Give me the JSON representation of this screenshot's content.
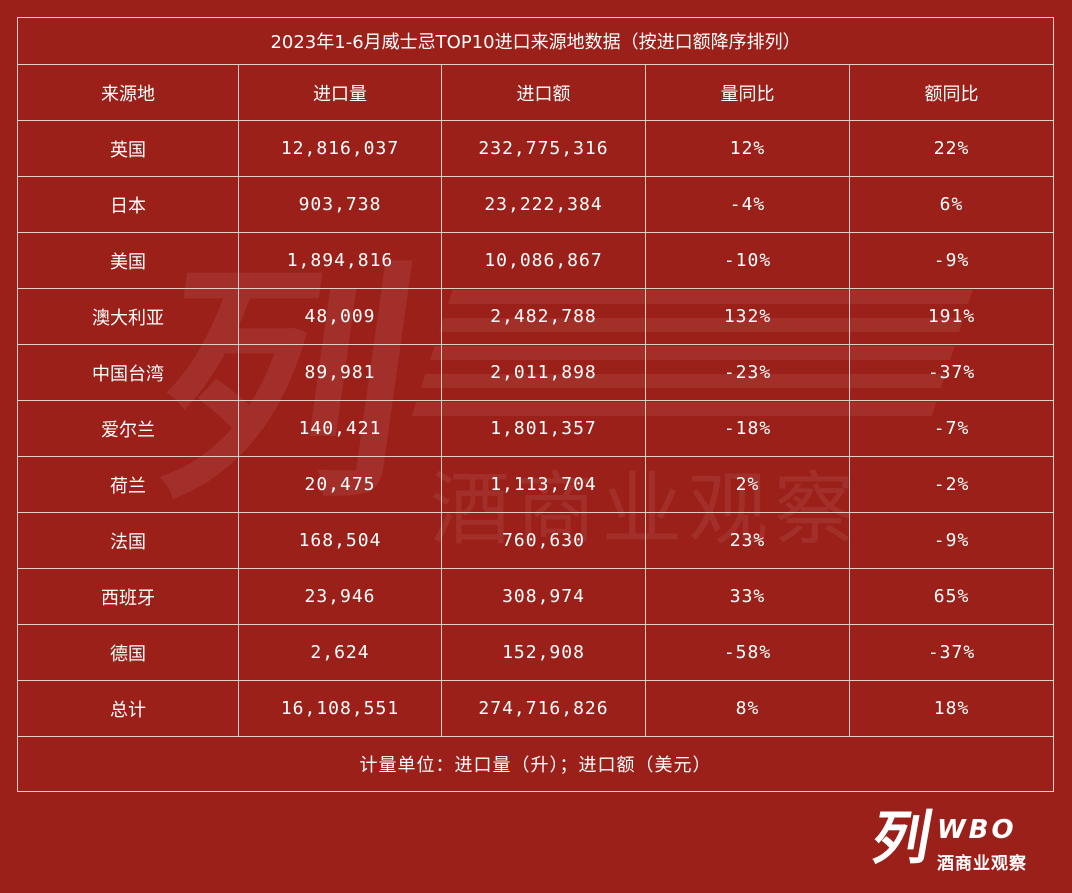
{
  "title": "2023年1-6月威士忌TOP10进口来源地数据（按进口额降序排列）",
  "headers": [
    "来源地",
    "进口量",
    "进口额",
    "量同比",
    "额同比"
  ],
  "rows": [
    {
      "origin": "英国",
      "volume": "12,816,037",
      "value": "232,775,316",
      "vol_yoy": "12%",
      "val_yoy": "22%"
    },
    {
      "origin": "日本",
      "volume": "903,738",
      "value": "23,222,384",
      "vol_yoy": "-4%",
      "val_yoy": "6%"
    },
    {
      "origin": "美国",
      "volume": "1,894,816",
      "value": "10,086,867",
      "vol_yoy": "-10%",
      "val_yoy": "-9%"
    },
    {
      "origin": "澳大利亚",
      "volume": "48,009",
      "value": "2,482,788",
      "vol_yoy": "132%",
      "val_yoy": "191%"
    },
    {
      "origin": "中国台湾",
      "volume": "89,981",
      "value": "2,011,898",
      "vol_yoy": "-23%",
      "val_yoy": "-37%"
    },
    {
      "origin": "爱尔兰",
      "volume": "140,421",
      "value": "1,801,357",
      "vol_yoy": "-18%",
      "val_yoy": "-7%"
    },
    {
      "origin": "荷兰",
      "volume": "20,475",
      "value": "1,113,704",
      "vol_yoy": "2%",
      "val_yoy": "-2%"
    },
    {
      "origin": "法国",
      "volume": "168,504",
      "value": "760,630",
      "vol_yoy": "23%",
      "val_yoy": "-9%"
    },
    {
      "origin": "西班牙",
      "volume": "23,946",
      "value": "308,974",
      "vol_yoy": "33%",
      "val_yoy": "65%"
    },
    {
      "origin": "德国",
      "volume": "2,624",
      "value": "152,908",
      "vol_yoy": "-58%",
      "val_yoy": "-37%"
    }
  ],
  "total": {
    "origin": "总计",
    "volume": "16,108,551",
    "value": "274,716,826",
    "vol_yoy": "8%",
    "val_yoy": "18%"
  },
  "note": "计量单位：进口量（升）；进口额（美元）",
  "watermark": {
    "big": "列",
    "sub": "酒商业观察"
  },
  "logo": {
    "mark": "列",
    "wbo": "WBO",
    "cn": "酒商业观察"
  },
  "colors": {
    "background": "#9b2019",
    "grid": "#e8c9c6",
    "text": "#ffffff"
  }
}
